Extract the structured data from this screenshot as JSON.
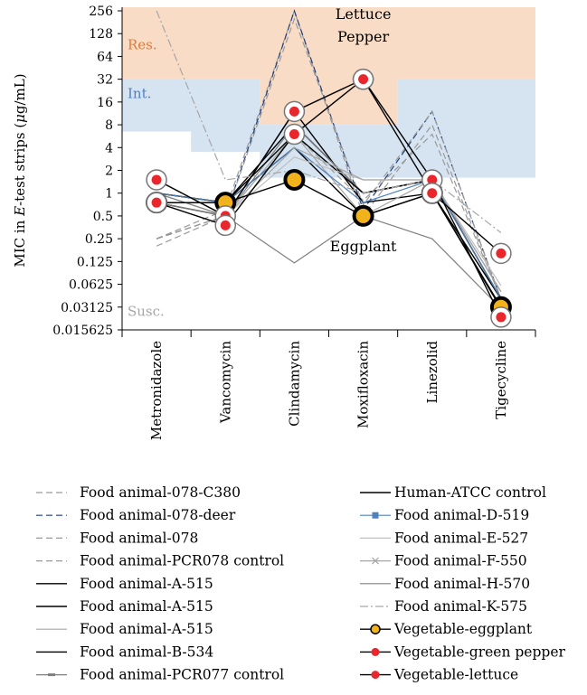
{
  "chart_data": {
    "type": "line",
    "ylabel": "MIC in E-test strips (μg/mL)",
    "ylabel_parts": {
      "pre": "MIC in ",
      "italic": "E",
      "post": "-test strips (",
      "mu": "μ",
      "unit": "g/mL)"
    },
    "y_scale": "log2",
    "ylim": [
      0.015625,
      256
    ],
    "yticks": [
      "256",
      "128",
      "64",
      "32",
      "16",
      "8",
      "4",
      "2",
      "1",
      "0.5",
      "0.25",
      "0.125",
      "0.0625",
      "0.03125",
      "0.015625"
    ],
    "ytick_values": [
      256,
      128,
      64,
      32,
      16,
      8,
      4,
      2,
      1,
      0.5,
      0.25,
      0.125,
      0.0625,
      0.03125,
      0.015625
    ],
    "categories": [
      "Metronidazole",
      "Vancomycin",
      "Clindamycin",
      "Moxifloxacin",
      "Linezolid",
      "Tigecycline"
    ],
    "zones": {
      "resistant": {
        "label": "Res.",
        "color": "#f8dcc6",
        "text_color": "#e07b39",
        "lower": [
          32,
          32,
          8,
          8,
          32,
          32
        ]
      },
      "intermediate": {
        "label": "Int.",
        "color": "#d6e4f2",
        "text_color": "#4f81bd",
        "lower": [
          6.5,
          3.5,
          1.6,
          1.6,
          1.6,
          1.6
        ]
      },
      "susceptible": {
        "label": "Susc.",
        "text_color": "#a6a6a6"
      }
    },
    "annotations": [
      {
        "text": "Lettuce",
        "category": "Moxifloxacin",
        "value": 200
      },
      {
        "text": "Pepper",
        "category": "Moxifloxacin",
        "value": 100
      },
      {
        "text": "Eggplant",
        "category": "Moxifloxacin",
        "value": 0.17
      }
    ],
    "series": [
      {
        "name": "Food animal-078-C380",
        "color": "#9a9a9a",
        "style": "dash",
        "values": [
          0.25,
          0.6,
          256,
          0.5,
          8,
          0.04
        ]
      },
      {
        "name": "Food animal-078-deer",
        "color": "#1f3d7a",
        "style": "dash",
        "values": [
          0.25,
          0.5,
          256,
          0.6,
          12,
          0.04
        ]
      },
      {
        "name": "Food animal-078",
        "color": "#9a9a9a",
        "style": "dash",
        "values": [
          0.2,
          0.5,
          200,
          0.7,
          12,
          0.04
        ]
      },
      {
        "name": "Food animal-PCR078 control",
        "color": "#9a9a9a",
        "style": "dash",
        "values": [
          0.25,
          0.5,
          6,
          0.8,
          6,
          0.04
        ]
      },
      {
        "name": "Food animal-A-515",
        "color": "#000000",
        "style": "solid",
        "values": [
          1,
          0.75,
          8,
          1,
          1.5,
          0.04
        ]
      },
      {
        "name": "Food animal-A-515",
        "color": "#000000",
        "style": "solid",
        "values": [
          0.75,
          0.5,
          12,
          0.75,
          1,
          0.04
        ]
      },
      {
        "name": "Food animal-A-515",
        "color": "#a6a6a6",
        "style": "solid",
        "values": [
          1,
          0.5,
          6,
          0.5,
          1.5,
          0.05
        ]
      },
      {
        "name": "Food animal-B-534",
        "color": "#000000",
        "style": "solid",
        "values": [
          0.75,
          0.75,
          4,
          0.5,
          1,
          0.03
        ]
      },
      {
        "name": "Food animal-PCR077 control",
        "color": "#7f7f7f",
        "style": "solid-marker",
        "values": [
          1,
          0.5,
          8,
          1,
          1.5,
          0.05
        ]
      },
      {
        "name": "Human-ATCC control",
        "color": "#000000",
        "style": "solid",
        "values": [
          1,
          0.75,
          6,
          1,
          1.5,
          0.04
        ]
      },
      {
        "name": "Food animal-D-519",
        "color": "#4f81bd",
        "style": "square-marker",
        "values": [
          1,
          0.75,
          4,
          0.75,
          1.5,
          0.04
        ]
      },
      {
        "name": "Food animal-E-527",
        "color": "#bfbfbf",
        "style": "solid",
        "values": [
          1.5,
          0.5,
          3,
          1.5,
          1.5,
          0.06
        ]
      },
      {
        "name": "Food animal-F-550",
        "color": "#a6a6a6",
        "style": "x-marker",
        "values": [
          1.5,
          0.5,
          4,
          1.5,
          1.5,
          0.05
        ]
      },
      {
        "name": "Food animal-H-570",
        "color": "#808080",
        "style": "solid",
        "values": [
          0.75,
          0.5,
          0.12,
          0.5,
          0.25,
          0.03
        ]
      },
      {
        "name": "Food animal-K-575",
        "color": "#a6a6a6",
        "style": "dashdot",
        "values": [
          256,
          1.5,
          2,
          1,
          1.5,
          0.3
        ]
      },
      {
        "name": "Vegetable-eggplant",
        "color": "#000000",
        "marker_fill": "#f2b21c",
        "style": "big-marker",
        "values": [
          0.75,
          0.75,
          1.5,
          0.5,
          1,
          0.03125
        ]
      },
      {
        "name": "Vegetable-green pepper",
        "color": "#000000",
        "marker_fill": "#e8262b",
        "style": "red-marker",
        "values": [
          1.5,
          0.5,
          12,
          32,
          1.5,
          0.023
        ]
      },
      {
        "name": "Vegetable-lettuce",
        "color": "#000000",
        "marker_fill": "#e8262b",
        "style": "red-marker",
        "values": [
          0.75,
          0.375,
          6,
          32,
          1,
          0.16
        ]
      }
    ]
  }
}
